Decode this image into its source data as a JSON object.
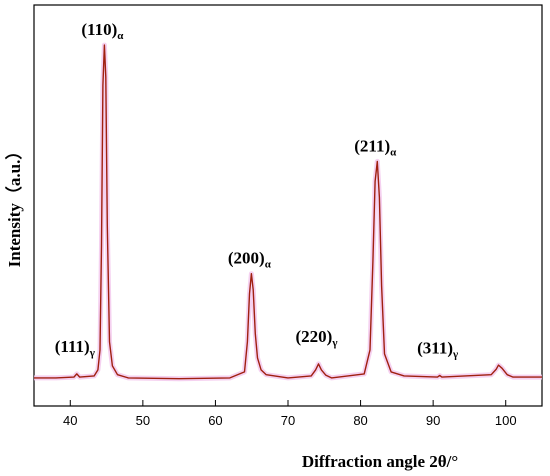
{
  "chart_data": {
    "type": "line",
    "xlabel": "Diffraction angle 2θ/°",
    "ylabel": "Intensity（a.u.）",
    "xlim": [
      35,
      105
    ],
    "ylim": [
      0,
      1.0
    ],
    "xticks": [
      40,
      50,
      60,
      70,
      80,
      90,
      100
    ],
    "grid": false,
    "colors": {
      "line": "#a02010",
      "glow": "#f2c6ec",
      "axis": "#000000"
    },
    "series": [
      {
        "x": [
          35,
          38,
          40.5,
          40.9,
          41.3,
          43.3,
          43.8,
          44.1,
          44.3,
          44.5,
          44.7,
          44.9,
          45.1,
          45.4,
          45.8,
          46.5,
          48,
          55,
          62,
          64.0,
          64.4,
          64.7,
          64.95,
          65.2,
          65.5,
          65.8,
          66.3,
          67.0,
          70,
          73.2,
          73.8,
          74.2,
          74.6,
          75.2,
          76,
          80.5,
          81.3,
          81.7,
          82.0,
          82.3,
          82.6,
          82.9,
          83.3,
          84.2,
          86,
          90.6,
          90.9,
          91.2,
          98.0,
          98.7,
          99.0,
          99.5,
          100.2,
          101,
          105
        ],
        "y": [
          0.07,
          0.07,
          0.072,
          0.08,
          0.072,
          0.075,
          0.09,
          0.14,
          0.4,
          0.8,
          0.9,
          0.82,
          0.45,
          0.16,
          0.1,
          0.078,
          0.07,
          0.068,
          0.07,
          0.085,
          0.16,
          0.28,
          0.33,
          0.29,
          0.18,
          0.12,
          0.09,
          0.078,
          0.07,
          0.075,
          0.09,
          0.105,
          0.09,
          0.077,
          0.07,
          0.08,
          0.14,
          0.36,
          0.56,
          0.61,
          0.52,
          0.3,
          0.13,
          0.085,
          0.075,
          0.072,
          0.076,
          0.072,
          0.078,
          0.092,
          0.102,
          0.094,
          0.078,
          0.072,
          0.072
        ]
      }
    ],
    "annotations": [
      {
        "main": "(111)",
        "sub": "γ",
        "x": 40.9
      },
      {
        "main": "(110)",
        "sub": "α",
        "x": 44.7
      },
      {
        "main": "(200)",
        "sub": "α",
        "x": 64.95
      },
      {
        "main": "(220)",
        "sub": "γ",
        "x": 74.2
      },
      {
        "main": "(211)",
        "sub": "α",
        "x": 82.3
      },
      {
        "main": "(311)",
        "sub": "γ",
        "x": 90.9
      }
    ]
  }
}
